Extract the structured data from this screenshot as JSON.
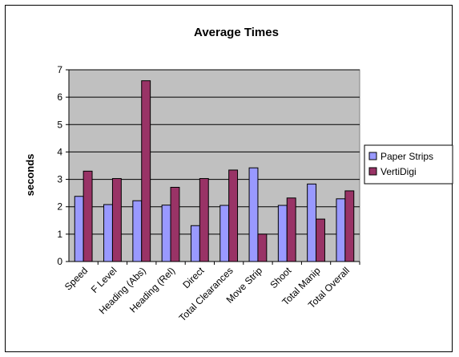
{
  "chart_data": {
    "type": "bar",
    "title": "Average Times",
    "xlabel": "",
    "ylabel": "seconds",
    "ylim": [
      0,
      7
    ],
    "yticks": [
      0,
      1,
      2,
      3,
      4,
      5,
      6,
      7
    ],
    "grid": true,
    "legend_position": "right",
    "categories": [
      "Speed",
      "F Level",
      "Heading (Abs)",
      "Heading (Rel)",
      "Direct",
      "Total Clearances",
      "Move Strip",
      "Shoot",
      "Total Manip",
      "Total Overall"
    ],
    "series": [
      {
        "name": "Paper Strips",
        "color": "#9999ff",
        "values": [
          2.38,
          2.08,
          2.22,
          2.06,
          1.31,
          2.05,
          3.42,
          2.05,
          2.83,
          2.29
        ]
      },
      {
        "name": "VertiDigi",
        "color": "#993366",
        "values": [
          3.3,
          3.03,
          6.6,
          2.71,
          3.03,
          3.34,
          1.0,
          2.32,
          1.55,
          2.58
        ]
      }
    ],
    "plot_background": "#c0c0c0"
  }
}
